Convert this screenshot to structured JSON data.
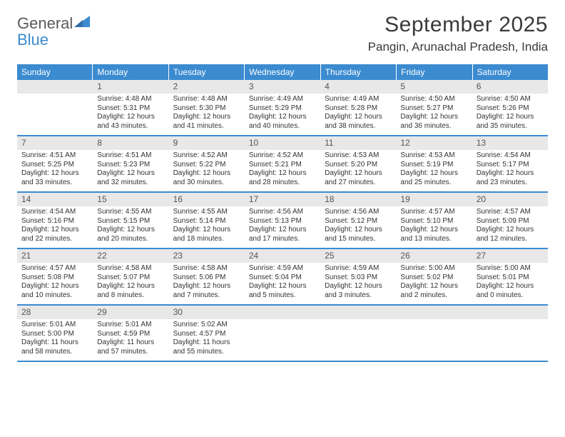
{
  "logo": {
    "word1": "General",
    "word2": "Blue",
    "icon_color": "#3b8bd0"
  },
  "title": "September 2025",
  "location": "Pangin, Arunachal Pradesh, India",
  "colors": {
    "header_bg": "#3b8bd0",
    "band_bg": "#e8e8e8",
    "text": "#333333"
  },
  "weekdays": [
    "Sunday",
    "Monday",
    "Tuesday",
    "Wednesday",
    "Thursday",
    "Friday",
    "Saturday"
  ],
  "weeks": [
    [
      null,
      {
        "n": "1",
        "sr": "Sunrise: 4:48 AM",
        "ss": "Sunset: 5:31 PM",
        "dl": "Daylight: 12 hours and 43 minutes."
      },
      {
        "n": "2",
        "sr": "Sunrise: 4:48 AM",
        "ss": "Sunset: 5:30 PM",
        "dl": "Daylight: 12 hours and 41 minutes."
      },
      {
        "n": "3",
        "sr": "Sunrise: 4:49 AM",
        "ss": "Sunset: 5:29 PM",
        "dl": "Daylight: 12 hours and 40 minutes."
      },
      {
        "n": "4",
        "sr": "Sunrise: 4:49 AM",
        "ss": "Sunset: 5:28 PM",
        "dl": "Daylight: 12 hours and 38 minutes."
      },
      {
        "n": "5",
        "sr": "Sunrise: 4:50 AM",
        "ss": "Sunset: 5:27 PM",
        "dl": "Daylight: 12 hours and 36 minutes."
      },
      {
        "n": "6",
        "sr": "Sunrise: 4:50 AM",
        "ss": "Sunset: 5:26 PM",
        "dl": "Daylight: 12 hours and 35 minutes."
      }
    ],
    [
      {
        "n": "7",
        "sr": "Sunrise: 4:51 AM",
        "ss": "Sunset: 5:25 PM",
        "dl": "Daylight: 12 hours and 33 minutes."
      },
      {
        "n": "8",
        "sr": "Sunrise: 4:51 AM",
        "ss": "Sunset: 5:23 PM",
        "dl": "Daylight: 12 hours and 32 minutes."
      },
      {
        "n": "9",
        "sr": "Sunrise: 4:52 AM",
        "ss": "Sunset: 5:22 PM",
        "dl": "Daylight: 12 hours and 30 minutes."
      },
      {
        "n": "10",
        "sr": "Sunrise: 4:52 AM",
        "ss": "Sunset: 5:21 PM",
        "dl": "Daylight: 12 hours and 28 minutes."
      },
      {
        "n": "11",
        "sr": "Sunrise: 4:53 AM",
        "ss": "Sunset: 5:20 PM",
        "dl": "Daylight: 12 hours and 27 minutes."
      },
      {
        "n": "12",
        "sr": "Sunrise: 4:53 AM",
        "ss": "Sunset: 5:19 PM",
        "dl": "Daylight: 12 hours and 25 minutes."
      },
      {
        "n": "13",
        "sr": "Sunrise: 4:54 AM",
        "ss": "Sunset: 5:17 PM",
        "dl": "Daylight: 12 hours and 23 minutes."
      }
    ],
    [
      {
        "n": "14",
        "sr": "Sunrise: 4:54 AM",
        "ss": "Sunset: 5:16 PM",
        "dl": "Daylight: 12 hours and 22 minutes."
      },
      {
        "n": "15",
        "sr": "Sunrise: 4:55 AM",
        "ss": "Sunset: 5:15 PM",
        "dl": "Daylight: 12 hours and 20 minutes."
      },
      {
        "n": "16",
        "sr": "Sunrise: 4:55 AM",
        "ss": "Sunset: 5:14 PM",
        "dl": "Daylight: 12 hours and 18 minutes."
      },
      {
        "n": "17",
        "sr": "Sunrise: 4:56 AM",
        "ss": "Sunset: 5:13 PM",
        "dl": "Daylight: 12 hours and 17 minutes."
      },
      {
        "n": "18",
        "sr": "Sunrise: 4:56 AM",
        "ss": "Sunset: 5:12 PM",
        "dl": "Daylight: 12 hours and 15 minutes."
      },
      {
        "n": "19",
        "sr": "Sunrise: 4:57 AM",
        "ss": "Sunset: 5:10 PM",
        "dl": "Daylight: 12 hours and 13 minutes."
      },
      {
        "n": "20",
        "sr": "Sunrise: 4:57 AM",
        "ss": "Sunset: 5:09 PM",
        "dl": "Daylight: 12 hours and 12 minutes."
      }
    ],
    [
      {
        "n": "21",
        "sr": "Sunrise: 4:57 AM",
        "ss": "Sunset: 5:08 PM",
        "dl": "Daylight: 12 hours and 10 minutes."
      },
      {
        "n": "22",
        "sr": "Sunrise: 4:58 AM",
        "ss": "Sunset: 5:07 PM",
        "dl": "Daylight: 12 hours and 8 minutes."
      },
      {
        "n": "23",
        "sr": "Sunrise: 4:58 AM",
        "ss": "Sunset: 5:06 PM",
        "dl": "Daylight: 12 hours and 7 minutes."
      },
      {
        "n": "24",
        "sr": "Sunrise: 4:59 AM",
        "ss": "Sunset: 5:04 PM",
        "dl": "Daylight: 12 hours and 5 minutes."
      },
      {
        "n": "25",
        "sr": "Sunrise: 4:59 AM",
        "ss": "Sunset: 5:03 PM",
        "dl": "Daylight: 12 hours and 3 minutes."
      },
      {
        "n": "26",
        "sr": "Sunrise: 5:00 AM",
        "ss": "Sunset: 5:02 PM",
        "dl": "Daylight: 12 hours and 2 minutes."
      },
      {
        "n": "27",
        "sr": "Sunrise: 5:00 AM",
        "ss": "Sunset: 5:01 PM",
        "dl": "Daylight: 12 hours and 0 minutes."
      }
    ],
    [
      {
        "n": "28",
        "sr": "Sunrise: 5:01 AM",
        "ss": "Sunset: 5:00 PM",
        "dl": "Daylight: 11 hours and 58 minutes."
      },
      {
        "n": "29",
        "sr": "Sunrise: 5:01 AM",
        "ss": "Sunset: 4:59 PM",
        "dl": "Daylight: 11 hours and 57 minutes."
      },
      {
        "n": "30",
        "sr": "Sunrise: 5:02 AM",
        "ss": "Sunset: 4:57 PM",
        "dl": "Daylight: 11 hours and 55 minutes."
      },
      null,
      null,
      null,
      null
    ]
  ]
}
